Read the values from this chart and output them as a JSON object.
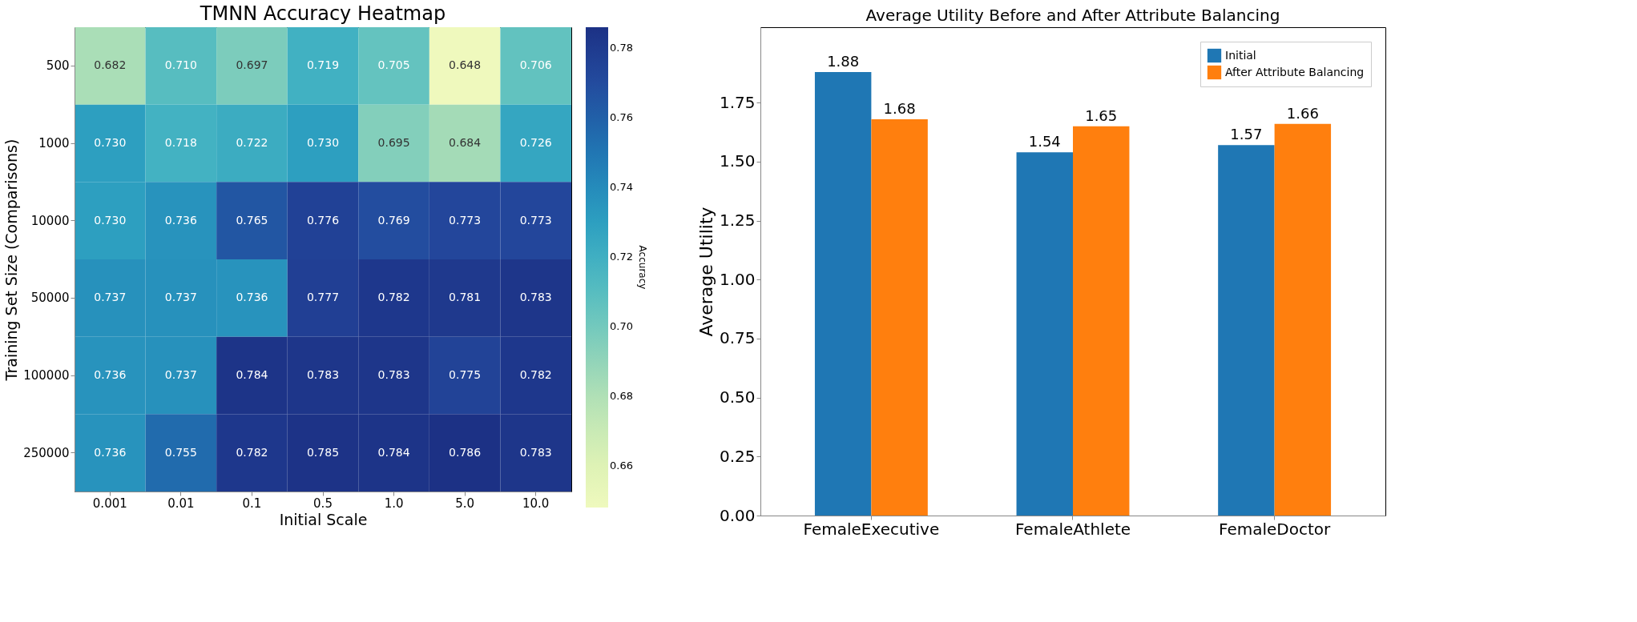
{
  "chart_data": [
    {
      "type": "heatmap",
      "title": "TMNN Accuracy Heatmap",
      "xlabel": "Initial Scale",
      "ylabel": "Training Set Size (Comparisons)",
      "clabel": "Accuracy",
      "categories": [
        "0.001",
        "0.01",
        "0.1",
        "0.5",
        "1.0",
        "5.0",
        "10.0"
      ],
      "y_categories": [
        "500",
        "1000",
        "10000",
        "50000",
        "100000",
        "250000"
      ],
      "cells": [
        [
          0.682,
          0.71,
          0.697,
          0.719,
          0.705,
          0.648,
          0.706
        ],
        [
          0.73,
          0.718,
          0.722,
          0.73,
          0.695,
          0.684,
          0.726
        ],
        [
          0.73,
          0.736,
          0.765,
          0.776,
          0.769,
          0.773,
          0.773
        ],
        [
          0.737,
          0.737,
          0.736,
          0.777,
          0.782,
          0.781,
          0.783
        ],
        [
          0.736,
          0.737,
          0.784,
          0.783,
          0.783,
          0.775,
          0.782
        ],
        [
          0.736,
          0.755,
          0.782,
          0.785,
          0.784,
          0.786,
          0.783
        ]
      ],
      "cell_labels": [
        [
          "0.682",
          "0.710",
          "0.697",
          "0.719",
          "0.705",
          "0.648",
          "0.706"
        ],
        [
          "0.730",
          "0.718",
          "0.722",
          "0.730",
          "0.695",
          "0.684",
          "0.726"
        ],
        [
          "0.730",
          "0.736",
          "0.765",
          "0.776",
          "0.769",
          "0.773",
          "0.773"
        ],
        [
          "0.737",
          "0.737",
          "0.736",
          "0.777",
          "0.782",
          "0.781",
          "0.783"
        ],
        [
          "0.736",
          "0.737",
          "0.784",
          "0.783",
          "0.783",
          "0.775",
          "0.782"
        ],
        [
          "0.736",
          "0.755",
          "0.782",
          "0.785",
          "0.784",
          "0.786",
          "0.783"
        ]
      ],
      "clim": [
        0.648,
        0.786
      ],
      "cticks": [
        0.66,
        0.68,
        {
          "value": 0.7,
          "label": "0.70"
        },
        0.72,
        0.74,
        0.76,
        0.78
      ]
    },
    {
      "type": "bar",
      "title": "Average Utility Before and After Attribute Balancing",
      "ylabel": "Average Utility",
      "categories": [
        "FemaleExecutive",
        "FemaleAthlete",
        "FemaleDoctor"
      ],
      "series": [
        {
          "name": "Initial",
          "color": "#1f77b4",
          "values": [
            1.88,
            1.54,
            1.57
          ]
        },
        {
          "name": "After Attribute Balancing",
          "color": "#ff7f0e",
          "values": [
            1.68,
            1.65,
            1.66
          ]
        }
      ],
      "ylim": [
        0,
        2.07
      ],
      "yticks": [
        {
          "value": 0,
          "label": "0.00"
        },
        0.25,
        {
          "value": 0.5,
          "label": "0.50"
        },
        0.75,
        {
          "value": 1,
          "label": "1.00"
        },
        1.25,
        {
          "value": 1.5,
          "label": "1.50"
        },
        1.75
      ],
      "data_labels": true,
      "legend": "top right",
      "grid": false
    }
  ]
}
